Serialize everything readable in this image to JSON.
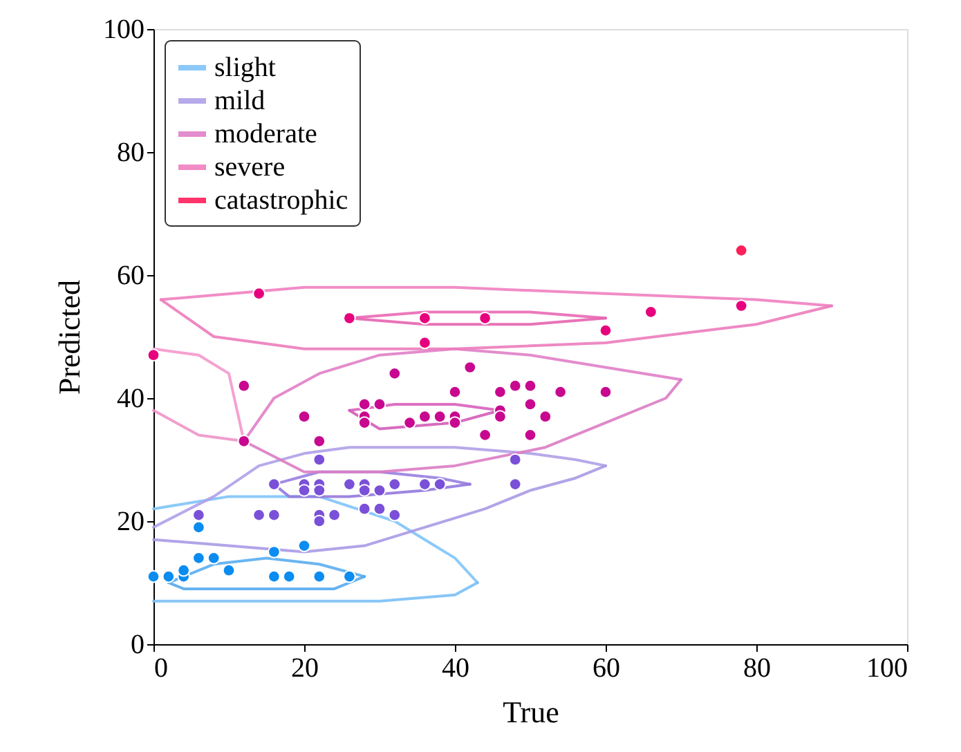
{
  "chart_data": {
    "type": "scatter",
    "xlabel": "True",
    "ylabel": "Predicted",
    "xlim": [
      0,
      100
    ],
    "ylim": [
      0,
      100
    ],
    "xticks": [
      0,
      20,
      40,
      60,
      80,
      100
    ],
    "yticks": [
      0,
      20,
      40,
      60,
      80,
      100
    ],
    "grid": false,
    "legend": "top left",
    "marker": "circle",
    "line_style": "solid",
    "series": [
      {
        "type": "line",
        "marker": "none",
        "name": "slight",
        "color": "#80c4f8",
        "x": [
          0,
          5,
          10,
          16,
          22,
          27,
          32,
          36,
          40,
          43
        ],
        "values": [
          22,
          23,
          24,
          24,
          24,
          22,
          20,
          17,
          14,
          10
        ]
      },
      {
        "type": "line",
        "marker": "none",
        "color": "#7ac0f6",
        "x": [
          0,
          10,
          20,
          30,
          40,
          43
        ],
        "values": [
          7,
          7,
          7,
          7,
          8,
          10
        ]
      },
      {
        "type": "line",
        "marker": "none",
        "color": "#5aaef0",
        "x": [
          2,
          8,
          15,
          22,
          28
        ],
        "values": [
          10,
          13,
          14,
          13,
          11
        ]
      },
      {
        "type": "line",
        "marker": "none",
        "color": "#56aaee",
        "x": [
          2,
          4,
          12,
          24,
          28
        ],
        "values": [
          10,
          9,
          9,
          9,
          11
        ]
      },
      {
        "type": "line",
        "marker": "none",
        "name": "mild",
        "color": "#b0a0e8",
        "x": [
          0,
          8,
          14,
          20,
          26,
          40,
          50,
          56,
          60
        ],
        "values": [
          19,
          24,
          29,
          31,
          32,
          32,
          31,
          30,
          29
        ]
      },
      {
        "type": "line",
        "marker": "none",
        "color": "#aa9ae6",
        "x": [
          0,
          10,
          20,
          28,
          36,
          44,
          50,
          56,
          60
        ],
        "values": [
          17,
          16,
          15,
          16,
          19,
          22,
          25,
          27,
          29
        ]
      },
      {
        "type": "line",
        "marker": "none",
        "color": "#9880e0",
        "x": [
          16,
          22,
          30,
          38,
          42
        ],
        "values": [
          26,
          28,
          28,
          27,
          26
        ]
      },
      {
        "type": "line",
        "marker": "none",
        "color": "#9478de",
        "x": [
          16,
          18,
          26,
          36,
          42
        ],
        "values": [
          26,
          24,
          24,
          25,
          26
        ]
      },
      {
        "type": "line",
        "marker": "none",
        "name": "moderate",
        "color": "#e080c8",
        "x": [
          12,
          16,
          22,
          30,
          40,
          50,
          60,
          70
        ],
        "values": [
          33,
          40,
          44,
          47,
          48,
          47,
          45,
          43
        ]
      },
      {
        "type": "line",
        "marker": "none",
        "color": "#dc7cc4",
        "x": [
          12,
          20,
          30,
          40,
          52,
          60,
          68,
          70
        ],
        "values": [
          33,
          28,
          28,
          29,
          32,
          36,
          40,
          43
        ]
      },
      {
        "type": "line",
        "marker": "none",
        "color": "#d860bc",
        "x": [
          26,
          32,
          40,
          46
        ],
        "values": [
          38,
          39,
          39,
          38
        ]
      },
      {
        "type": "line",
        "marker": "none",
        "color": "#d45cb8",
        "x": [
          26,
          30,
          40,
          46
        ],
        "values": [
          38,
          35,
          36,
          38
        ]
      },
      {
        "type": "line",
        "marker": "none",
        "name": "severe",
        "color": "#f080c0",
        "x": [
          1,
          20,
          40,
          60,
          80,
          90
        ],
        "values": [
          56,
          58,
          58,
          57,
          56,
          55
        ]
      },
      {
        "type": "line",
        "marker": "none",
        "color": "#ec7cbc",
        "x": [
          1,
          8,
          20,
          40,
          60,
          80,
          90
        ],
        "values": [
          56,
          50,
          48,
          48,
          49,
          52,
          55
        ]
      },
      {
        "type": "line",
        "marker": "none",
        "color": "#ea68b4",
        "x": [
          26,
          36,
          50,
          60
        ],
        "values": [
          53,
          54,
          54,
          53
        ]
      },
      {
        "type": "line",
        "marker": "none",
        "color": "#e664b0",
        "x": [
          26,
          36,
          50,
          60
        ],
        "values": [
          53,
          52,
          52,
          53
        ]
      },
      {
        "type": "line",
        "marker": "none",
        "color": "#f498cc",
        "x": [
          0,
          6,
          10,
          12
        ],
        "values": [
          48,
          47,
          44,
          33
        ]
      },
      {
        "type": "line",
        "marker": "none",
        "color": "#f094c8",
        "x": [
          0,
          6,
          12
        ],
        "values": [
          38,
          34,
          33
        ]
      },
      {
        "color": "#0a8cf0",
        "x": [
          0,
          2,
          4,
          4,
          6,
          6,
          8,
          10,
          16,
          16,
          18,
          20,
          22,
          26
        ],
        "values": [
          11,
          11,
          11,
          12,
          14,
          19,
          14,
          12,
          15,
          11,
          11,
          16,
          11,
          11
        ]
      },
      {
        "color": "#7a50d8",
        "x": [
          6,
          14,
          16,
          16,
          20,
          20,
          22,
          22,
          22,
          22,
          22,
          24,
          26,
          28,
          28,
          28,
          30,
          30,
          32,
          32,
          36,
          38,
          48,
          48
        ],
        "values": [
          21,
          21,
          21,
          26,
          26,
          25,
          26,
          25,
          30,
          21,
          20,
          21,
          26,
          26,
          25,
          22,
          25,
          22,
          26,
          21,
          26,
          26,
          26,
          30
        ]
      },
      {
        "color": "#c8088f",
        "x": [
          12,
          32,
          42,
          40,
          46,
          48,
          50,
          54,
          60,
          28,
          30,
          50,
          20,
          28,
          28,
          34,
          36,
          38,
          40,
          40,
          46,
          46,
          52,
          44,
          50,
          12,
          22
        ],
        "values": [
          42,
          44,
          45,
          41,
          41,
          42,
          42,
          41,
          41,
          39,
          39,
          39,
          37,
          37,
          36,
          36,
          37,
          37,
          37,
          36,
          38,
          37,
          37,
          34,
          34,
          33,
          33
        ]
      },
      {
        "color": "#e6007e",
        "x": [
          14,
          26,
          36,
          44,
          36,
          0,
          60,
          66,
          78
        ],
        "values": [
          57,
          53,
          53,
          53,
          49,
          47,
          51,
          54,
          55
        ]
      },
      {
        "name": "catastrophic",
        "color": "#ff1f5a",
        "x": [
          78
        ],
        "values": [
          64
        ]
      }
    ]
  }
}
